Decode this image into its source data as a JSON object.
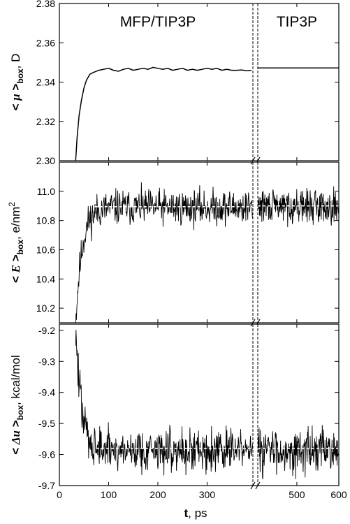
{
  "chart_data": {
    "type": "line",
    "break_interval": [
      393,
      407
    ],
    "region_labels": [
      {
        "text": "MFP/TIP3P",
        "x": 200
      },
      {
        "text": "TIP3P",
        "x": 500
      }
    ],
    "x_axis": {
      "label_bold": "t",
      "label_rest": ", ps",
      "xlim": [
        0,
        600
      ],
      "ticks": [
        0,
        100,
        200,
        300,
        500,
        600
      ],
      "tick_labels": [
        "0",
        "100",
        "200",
        "300",
        "500",
        "600"
      ]
    },
    "panels": [
      {
        "id": "dipole",
        "ylabel_bra": "<",
        "ylabel_sym": "μ",
        "ylabel_ket": ">",
        "ylabel_sub": "box",
        "ylabel_unit": ", D",
        "ylabel_sup": "",
        "ylim": [
          2.3,
          2.38
        ],
        "ticks": [
          2.3,
          2.32,
          2.34,
          2.36,
          2.38
        ],
        "tick_labels": [
          "2.30",
          "2.32",
          "2.34",
          "2.36",
          "2.38"
        ],
        "series": [
          {
            "kind": "line",
            "points": [
              [
                33,
                2.3
              ],
              [
                36,
                2.312
              ],
              [
                40,
                2.323
              ],
              [
                45,
                2.331
              ],
              [
                50,
                2.337
              ],
              [
                55,
                2.341
              ],
              [
                62,
                2.344
              ],
              [
                70,
                2.345
              ],
              [
                80,
                2.346
              ],
              [
                90,
                2.3465
              ],
              [
                100,
                2.347
              ],
              [
                110,
                2.346
              ],
              [
                120,
                2.3455
              ],
              [
                130,
                2.3465
              ],
              [
                140,
                2.347
              ],
              [
                150,
                2.346
              ],
              [
                160,
                2.3465
              ],
              [
                170,
                2.347
              ],
              [
                180,
                2.3465
              ],
              [
                190,
                2.3475
              ],
              [
                200,
                2.347
              ],
              [
                210,
                2.3465
              ],
              [
                220,
                2.347
              ],
              [
                230,
                2.346
              ],
              [
                240,
                2.3465
              ],
              [
                250,
                2.347
              ],
              [
                260,
                2.346
              ],
              [
                270,
                2.3465
              ],
              [
                280,
                2.346
              ],
              [
                290,
                2.3465
              ],
              [
                300,
                2.347
              ],
              [
                310,
                2.3465
              ],
              [
                320,
                2.347
              ],
              [
                330,
                2.346
              ],
              [
                340,
                2.3465
              ],
              [
                350,
                2.346
              ],
              [
                360,
                2.346
              ],
              [
                370,
                2.3462
              ],
              [
                380,
                2.3458
              ],
              [
                390,
                2.346
              ]
            ]
          },
          {
            "kind": "line",
            "points": [
              [
                407,
                2.3472
              ],
              [
                600,
                2.3472
              ]
            ]
          }
        ]
      },
      {
        "id": "field",
        "ylabel_bra": "<",
        "ylabel_sym": "E",
        "ylabel_ket": ">",
        "ylabel_sub": "box",
        "ylabel_unit": ", e/nm",
        "ylabel_sup": "2",
        "ylim": [
          10.1,
          11.2
        ],
        "ticks": [
          10.2,
          10.4,
          10.6,
          10.8,
          11.0
        ],
        "tick_labels": [
          "10.2",
          "10.4",
          "10.6",
          "10.8",
          "11.0"
        ],
        "series": [
          {
            "kind": "noise",
            "start": 33,
            "end": 393,
            "rise_from": 10.1,
            "plateau": 10.89,
            "tau": 13,
            "amp": 0.06,
            "seed": 11
          },
          {
            "kind": "noise",
            "start": 407,
            "end": 600,
            "rise_from": 10.9,
            "plateau": 10.9,
            "tau": 1,
            "amp": 0.055,
            "seed": 29
          },
          {
            "kind": "dashed",
            "points": [
              [
                72,
                10.895
              ],
              [
                393,
                10.895
              ]
            ]
          },
          {
            "kind": "dashed",
            "points": [
              [
                407,
                10.9
              ],
              [
                600,
                10.9
              ]
            ]
          }
        ]
      },
      {
        "id": "energy",
        "ylabel_bra": "<",
        "ylabel_sym": "Δu",
        "ylabel_ket": ">",
        "ylabel_sub": "box",
        "ylabel_unit": ", kcal/mol",
        "ylabel_sup": "",
        "ylim": [
          -9.7,
          -9.18
        ],
        "ticks": [
          -9.7,
          -9.6,
          -9.5,
          -9.4,
          -9.3,
          -9.2
        ],
        "tick_labels": [
          "-9.7",
          "-9.6",
          "-9.5",
          "-9.4",
          "-9.3",
          "-9.2"
        ],
        "series": [
          {
            "kind": "noise",
            "start": 33,
            "end": 393,
            "rise_from": -9.2,
            "plateau": -9.585,
            "tau": 12,
            "amp": 0.035,
            "seed": 47
          },
          {
            "kind": "noise",
            "start": 407,
            "end": 600,
            "rise_from": -9.585,
            "plateau": -9.585,
            "tau": 1,
            "amp": 0.035,
            "seed": 83
          },
          {
            "kind": "dashed",
            "points": [
              [
                75,
                -9.58
              ],
              [
                393,
                -9.58
              ]
            ]
          },
          {
            "kind": "dashed",
            "points": [
              [
                407,
                -9.58
              ],
              [
                600,
                -9.58
              ]
            ]
          }
        ]
      }
    ]
  }
}
